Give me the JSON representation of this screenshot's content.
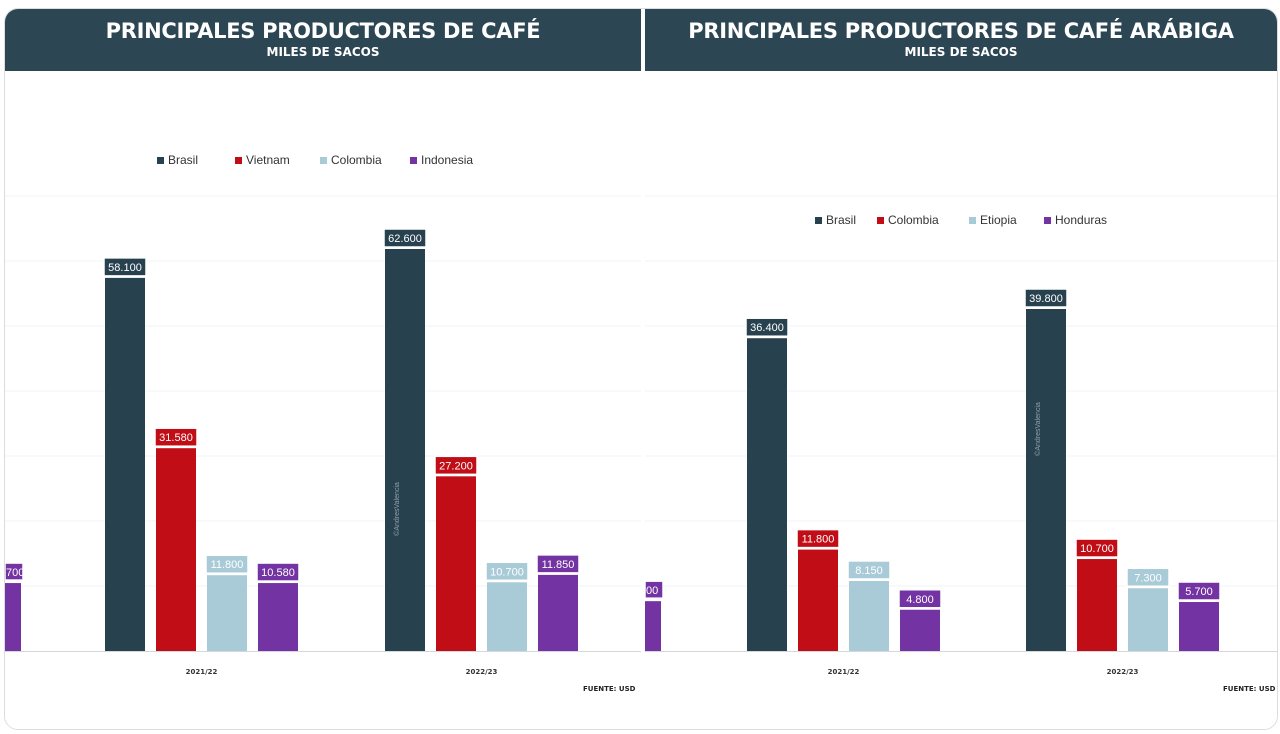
{
  "chart_data": [
    {
      "type": "bar",
      "title": "PRINCIPALES PRODUCTORES DE CAFÉ",
      "subtitle": "MILES DE SACOS",
      "categories": [
        "2021/22",
        "2022/23"
      ],
      "series": [
        {
          "name": "Brasil",
          "values": [
            58100,
            62600
          ],
          "labels": [
            "58.100",
            "62.600"
          ]
        },
        {
          "name": "Vietnam",
          "values": [
            31580,
            27200
          ],
          "labels": [
            "31.580",
            "27.200"
          ]
        },
        {
          "name": "Colombia",
          "values": [
            11800,
            10700
          ],
          "labels": [
            "11.800",
            "10.700"
          ]
        },
        {
          "name": "Indonesia",
          "values": [
            10580,
            11850
          ],
          "labels": [
            "10.580",
            "11.850"
          ]
        }
      ],
      "partial_bar_label": "700",
      "ylim": [
        0,
        62600
      ],
      "watermark": "©AndresValencia",
      "source": "FUENTE: USD"
    },
    {
      "type": "bar",
      "title": "PRINCIPALES PRODUCTORES DE CAFÉ ARÁBIGA",
      "subtitle": "MILES DE SACOS",
      "categories": [
        "2021/22",
        "2022/23"
      ],
      "series": [
        {
          "name": "Brasil",
          "values": [
            36400,
            39800
          ],
          "labels": [
            "36.400",
            "39.800"
          ]
        },
        {
          "name": "Colombia",
          "values": [
            11800,
            10700
          ],
          "labels": [
            "11.800",
            "10.700"
          ]
        },
        {
          "name": "Etiopia",
          "values": [
            8150,
            7300
          ],
          "labels": [
            "8.150",
            "7.300"
          ]
        },
        {
          "name": "Honduras",
          "values": [
            4800,
            5700
          ],
          "labels": [
            "4.800",
            "5.700"
          ]
        }
      ],
      "partial_bar_label": "00",
      "ylim": [
        0,
        39800
      ],
      "watermark": "©AndresValencia",
      "source": "FUENTE: USD"
    }
  ],
  "colors": {
    "header": "#2d4654",
    "series1": "#27414f",
    "series2": "#c00d16",
    "series3": "#a9cbd7",
    "series4": "#7433a2"
  }
}
